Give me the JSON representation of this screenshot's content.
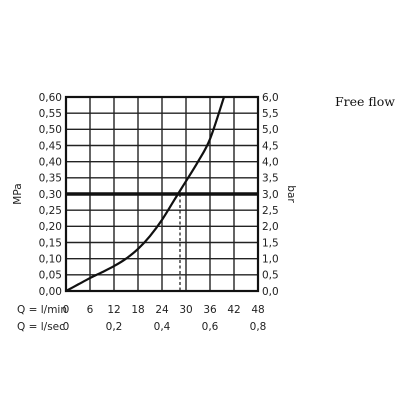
{
  "chart_data": {
    "type": "line",
    "title": "Free flow",
    "left_axis": {
      "label": "MPa",
      "ticks": [
        "0,00",
        "0,05",
        "0,10",
        "0,15",
        "0,20",
        "0,25",
        "0,30",
        "0,35",
        "0,40",
        "0,45",
        "0,50",
        "0,55",
        "0,60"
      ],
      "range": [
        0,
        0.6
      ]
    },
    "right_axis": {
      "label": "bar",
      "ticks": [
        "0,0",
        "0,5",
        "1,0",
        "1,5",
        "2,0",
        "2,5",
        "3,0",
        "3,5",
        "4,0",
        "4,5",
        "5,0",
        "5,5",
        "6,0"
      ],
      "range": [
        0,
        6
      ]
    },
    "x_axis": {
      "label": "Q = l/min",
      "ticks": [
        "0",
        "6",
        "12",
        "18",
        "24",
        "30",
        "36",
        "42",
        "48"
      ],
      "range": [
        0,
        48
      ]
    },
    "x_axis_secondary": {
      "label": "Q = l/sec",
      "ticks": [
        {
          "at": 0,
          "label": "0"
        },
        {
          "at": 12,
          "label": "0,2"
        },
        {
          "at": 24,
          "label": "0,4"
        },
        {
          "at": 36,
          "label": "0,6"
        },
        {
          "at": 48,
          "label": "0,8"
        }
      ]
    },
    "grid": true,
    "series": [
      {
        "x": [
          0,
          3,
          6,
          9,
          12,
          15,
          18,
          21,
          24,
          27,
          29,
          33,
          36,
          39.5
        ],
        "y": [
          0.0,
          0.02,
          0.04,
          0.058,
          0.077,
          0.1,
          0.13,
          0.17,
          0.22,
          0.28,
          0.32,
          0.4,
          0.47,
          0.6
        ]
      }
    ],
    "reference_line": {
      "y": 0.3
    },
    "marker": {
      "x": 28.5
    }
  }
}
